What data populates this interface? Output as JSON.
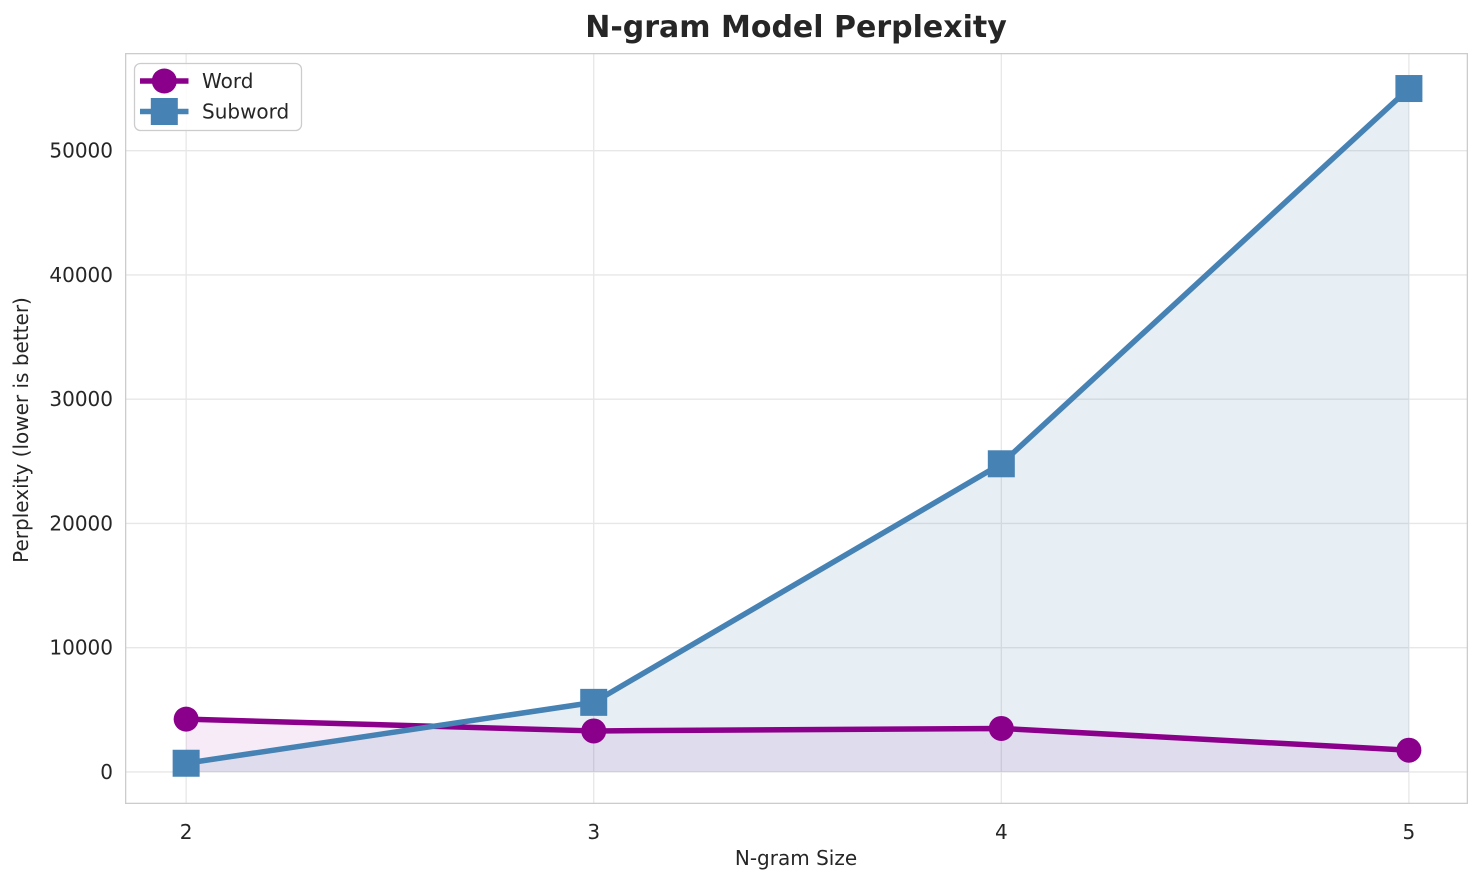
{
  "chart_data": {
    "type": "line",
    "title": "N-gram Model Perplexity",
    "xlabel": "N-gram Size",
    "ylabel": "Perplexity (lower is better)",
    "x": [
      2,
      3,
      4,
      5
    ],
    "series": [
      {
        "name": "Word",
        "marker": "circle",
        "color": "#8B008B",
        "fill_alpha": 0.08,
        "values": [
          4250,
          3300,
          3500,
          1750
        ]
      },
      {
        "name": "Subword",
        "marker": "square",
        "color": "#4682B4",
        "fill_alpha": 0.13,
        "values": [
          700,
          5600,
          24800,
          55000
        ]
      }
    ],
    "x_ticks": [
      2,
      3,
      4,
      5
    ],
    "y_ticks": [
      0,
      10000,
      20000,
      30000,
      40000,
      50000
    ],
    "xlim": [
      1.85,
      5.145
    ],
    "ylim": [
      -2580,
      57860
    ],
    "grid": true,
    "grid_color": "#e7e7e7",
    "spine_color": "#cccccc",
    "legend_position": "upper left",
    "background": "#ffffff"
  }
}
